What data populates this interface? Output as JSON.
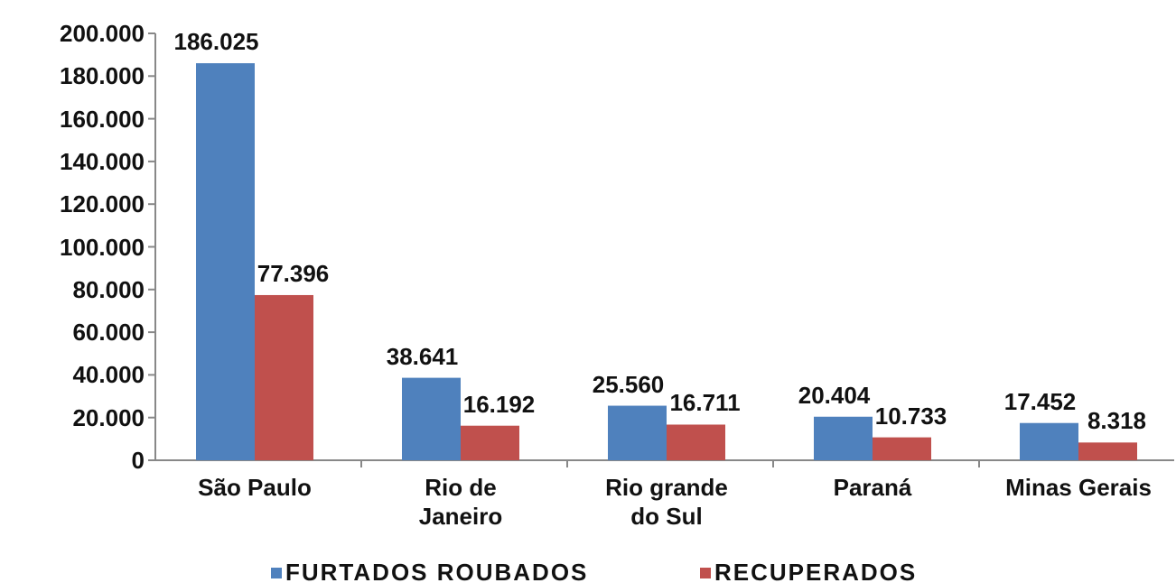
{
  "chart_data": {
    "type": "bar",
    "categories": [
      "São Paulo",
      "Rio de\nJaneiro",
      "Rio grande\ndo Sul",
      "Paraná",
      "Minas Gerais"
    ],
    "series": [
      {
        "name": "FURTADOS ROUBADOS",
        "color": "#4f81bd",
        "values": [
          186025,
          38641,
          25560,
          20404,
          17452
        ],
        "value_labels": [
          "186.025",
          "38.641",
          "25.560",
          "20.404",
          "17.452"
        ]
      },
      {
        "name": "RECUPERADOS",
        "color": "#c0504d",
        "values": [
          77396,
          16192,
          16711,
          10733,
          8318
        ],
        "value_labels": [
          "77.396",
          "16.192",
          "16.711",
          "10.733",
          "8.318"
        ]
      }
    ],
    "ylim": [
      0,
      200000
    ],
    "yticks": [
      0,
      {
        "value": 20000,
        "label": "20.000"
      },
      {
        "value": 40000,
        "label": "40.000"
      },
      {
        "value": 60000,
        "label": "60.000"
      },
      {
        "value": 80000,
        "label": "80.000"
      },
      {
        "value": 100000,
        "label": "100.000"
      },
      {
        "value": 120000,
        "label": "120.000"
      },
      {
        "value": 140000,
        "label": "140.000"
      },
      {
        "value": 160000,
        "label": "160.000"
      },
      {
        "value": 180000,
        "label": "180.000"
      },
      {
        "value": 200000,
        "label": "200.000"
      }
    ],
    "legend": "bottom"
  }
}
